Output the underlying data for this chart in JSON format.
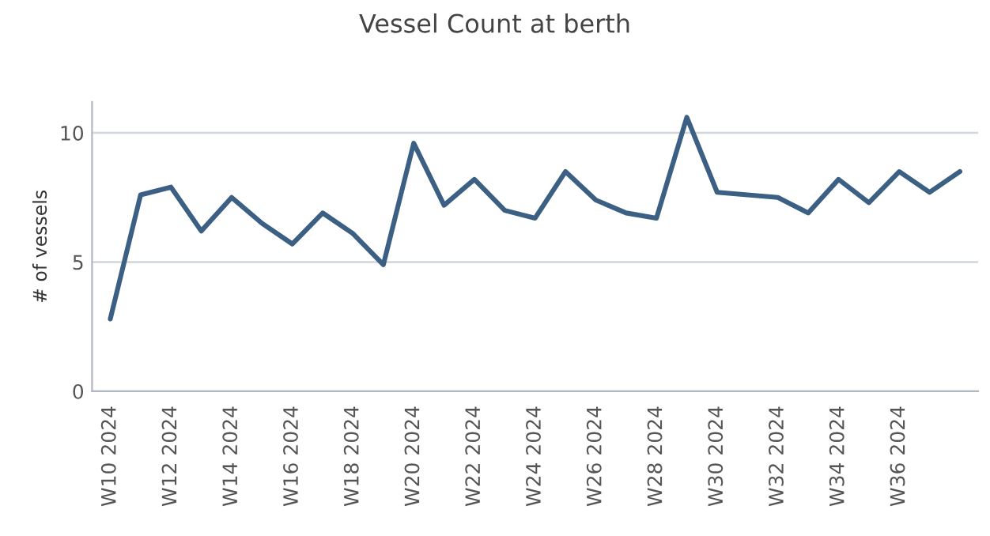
{
  "chart_data": {
    "type": "line",
    "title": "Vessel Count at berth",
    "ylabel": "# of vessels",
    "categories": [
      "W10 2024",
      null,
      "W12 2024",
      null,
      "W14 2024",
      null,
      "W16 2024",
      null,
      "W18 2024",
      null,
      "W20 2024",
      null,
      "W22 2024",
      null,
      "W24 2024",
      null,
      "W26 2024",
      null,
      "W28 2024",
      null,
      "W30 2024",
      null,
      "W32 2024",
      null,
      "W34 2024",
      null,
      "W36 2024",
      null,
      null
    ],
    "series": [
      {
        "color": "#3c5f84",
        "values": [
          2.8,
          7.6,
          7.9,
          6.2,
          7.5,
          6.5,
          5.7,
          6.9,
          6.1,
          4.9,
          9.6,
          7.2,
          8.2,
          7.0,
          6.7,
          8.5,
          7.4,
          6.9,
          6.7,
          10.6,
          7.7,
          7.6,
          7.5,
          6.9,
          8.2,
          7.3,
          8.5,
          7.7,
          8.5
        ]
      }
    ],
    "ylim": [
      0,
      11.2
    ],
    "yticks": [
      0,
      5,
      10
    ],
    "grid": "y",
    "legend": false,
    "marker": "none",
    "line_style": "solid"
  }
}
